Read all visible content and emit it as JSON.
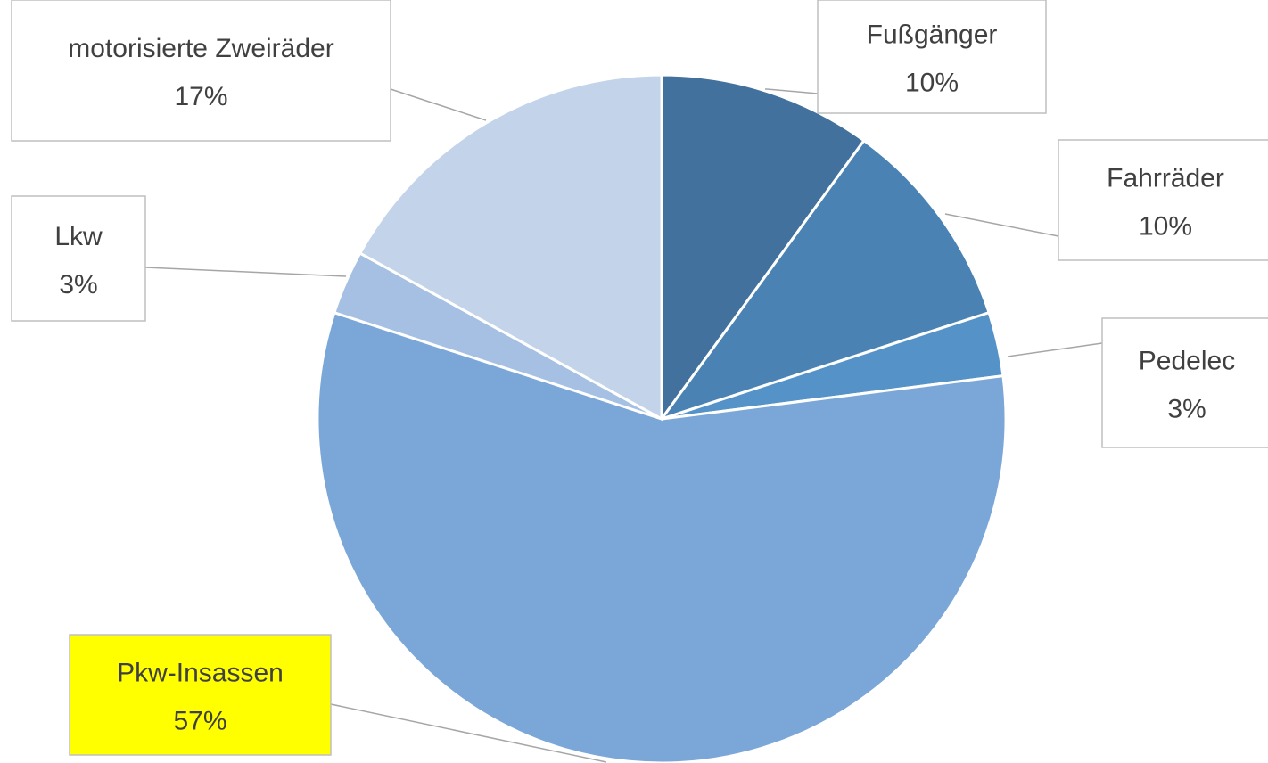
{
  "chart_data": {
    "type": "pie",
    "categories": [
      "Fußgänger",
      "Fahrräder",
      "Pedelec",
      "Pkw-Insassen",
      "Lkw",
      "motorisierte Zweiräder"
    ],
    "values": [
      10,
      10,
      3,
      57,
      3,
      17
    ],
    "value_labels": [
      "10%",
      "10%",
      "3%",
      "57%",
      "3%",
      "17%"
    ],
    "colors": [
      "#41719c",
      "#4a82b4",
      "#5592c8",
      "#7ba7d8",
      "#a5c0e3",
      "#c3d4ea"
    ]
  }
}
